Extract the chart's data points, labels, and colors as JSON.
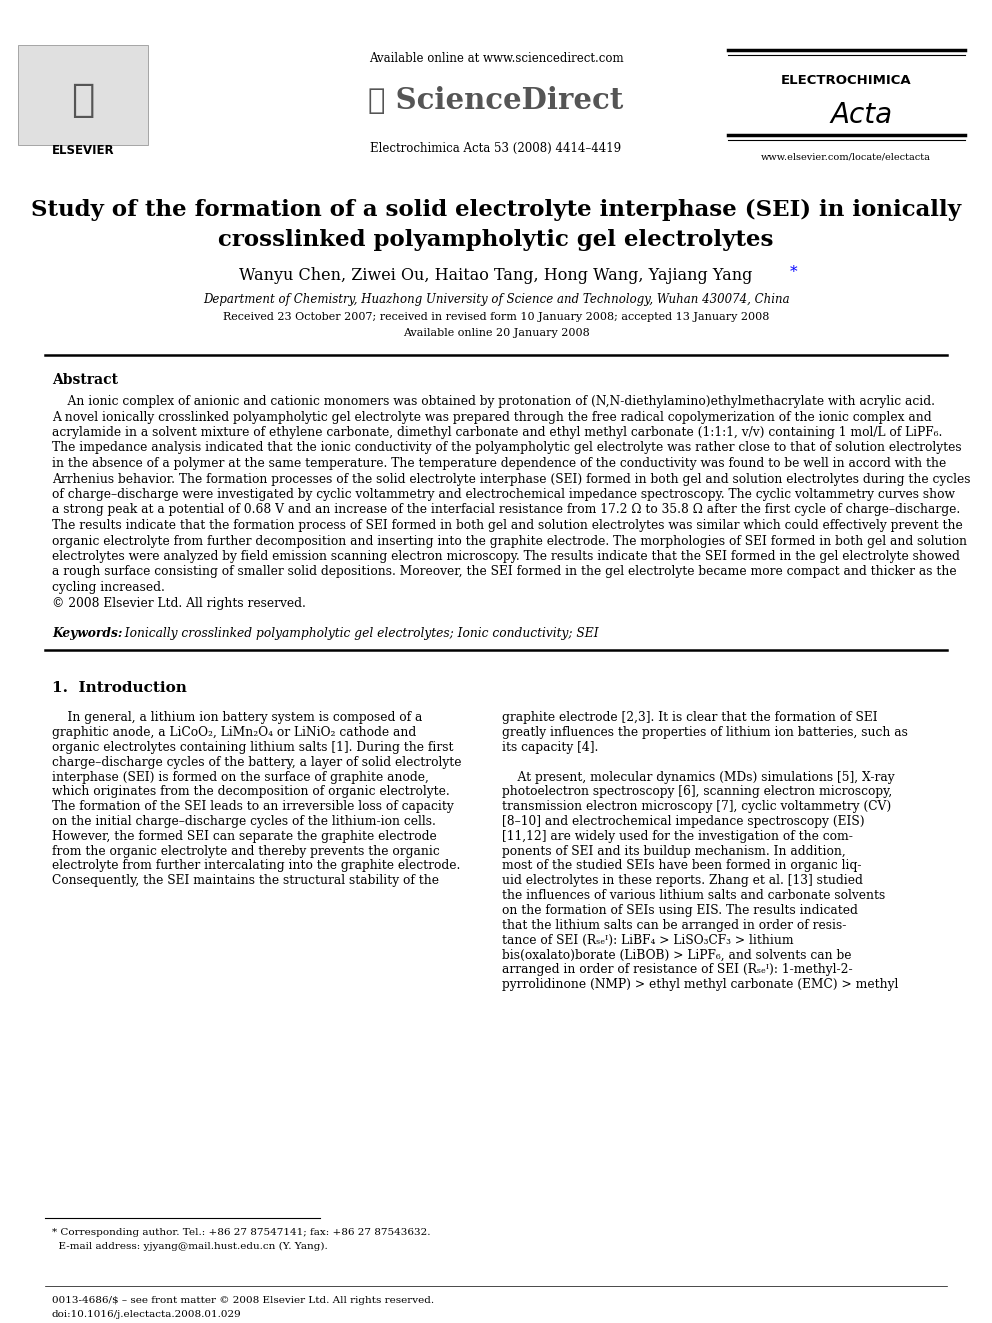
{
  "bg_color": "#ffffff",
  "title_line1": "Study of the formation of a solid electrolyte interphase (SEI) in ionically",
  "title_line2": "crosslinked polyampholytic gel electrolytes",
  "authors_main": "Wanyu Chen, Ziwei Ou, Haitao Tang, Hong Wang, Yajiang Yang",
  "affiliation": "Department of Chemistry, Huazhong University of Science and Technology, Wuhan 430074, China",
  "received": "Received 23 October 2007; received in revised form 10 January 2008; accepted 13 January 2008",
  "available": "Available online 20 January 2008",
  "abstract_title": "Abstract",
  "abstract_indent": "    An ionic complex of anionic and cationic monomers was obtained by protonation of (N,N-diethylamino)ethylmethacrylate with acrylic acid.",
  "abstract_lines": [
    "A novel ionically crosslinked polyampholytic gel electrolyte was prepared through the free radical copolymerization of the ionic complex and",
    "acrylamide in a solvent mixture of ethylene carbonate, dimethyl carbonate and ethyl methyl carbonate (1:1:1, v/v) containing 1 mol/L of LiPF₆.",
    "The impedance analysis indicated that the ionic conductivity of the polyampholytic gel electrolyte was rather close to that of solution electrolytes",
    "in the absence of a polymer at the same temperature. The temperature dependence of the conductivity was found to be well in accord with the",
    "Arrhenius behavior. The formation processes of the solid electrolyte interphase (SEI) formed in both gel and solution electrolytes during the cycles",
    "of charge–discharge were investigated by cyclic voltammetry and electrochemical impedance spectroscopy. The cyclic voltammetry curves show",
    "a strong peak at a potential of 0.68 V and an increase of the interfacial resistance from 17.2 Ω to 35.8 Ω after the first cycle of charge–discharge.",
    "The results indicate that the formation process of SEI formed in both gel and solution electrolytes was similar which could effectively prevent the",
    "organic electrolyte from further decomposition and inserting into the graphite electrode. The morphologies of SEI formed in both gel and solution",
    "electrolytes were analyzed by field emission scanning electron microscopy. The results indicate that the SEI formed in the gel electrolyte showed",
    "a rough surface consisting of smaller solid depositions. Moreover, the SEI formed in the gel electrolyte became more compact and thicker as the",
    "cycling increased.",
    "© 2008 Elsevier Ltd. All rights reserved."
  ],
  "keywords_italic": "Keywords:",
  "keywords_rest": "  Ionically crosslinked polyampholytic gel electrolytes; Ionic conductivity; SEI",
  "section1": "1.  Introduction",
  "intro_left_lines": [
    "    In general, a lithium ion battery system is composed of a",
    "graphitic anode, a LiCoO₂, LiMn₂O₄ or LiNiO₂ cathode and",
    "organic electrolytes containing lithium salts [1]. During the first",
    "charge–discharge cycles of the battery, a layer of solid electrolyte",
    "interphase (SEI) is formed on the surface of graphite anode,",
    "which originates from the decomposition of organic electrolyte.",
    "The formation of the SEI leads to an irreversible loss of capacity",
    "on the initial charge–discharge cycles of the lithium-ion cells.",
    "However, the formed SEI can separate the graphite electrode",
    "from the organic electrolyte and thereby prevents the organic",
    "electrolyte from further intercalating into the graphite electrode.",
    "Consequently, the SEI maintains the structural stability of the"
  ],
  "intro_right_lines": [
    "graphite electrode [2,3]. It is clear that the formation of SEI",
    "greatly influences the properties of lithium ion batteries, such as",
    "its capacity [4].",
    "",
    "    At present, molecular dynamics (MDs) simulations [5], X-ray",
    "photoelectron spectroscopy [6], scanning electron microscopy,",
    "transmission electron microscopy [7], cyclic voltammetry (CV)",
    "[8–10] and electrochemical impedance spectroscopy (EIS)",
    "[11,12] are widely used for the investigation of the com-",
    "ponents of SEI and its buildup mechanism. In addition,",
    "most of the studied SEIs have been formed in organic liq-",
    "uid electrolytes in these reports. Zhang et al. [13] studied",
    "the influences of various lithium salts and carbonate solvents",
    "on the formation of SEIs using EIS. The results indicated",
    "that the lithium salts can be arranged in order of resis-",
    "tance of SEI (Rₛₑᴵ): LiBF₄ > LiSO₃CF₃ > lithium",
    "bis(oxalato)borate (LiBOB) > LiPF₆, and solvents can be",
    "arranged in order of resistance of SEI (Rₛₑᴵ): 1-methyl-2-",
    "pyrrolidinone (NMP) > ethyl methyl carbonate (EMC) > methyl"
  ],
  "footer_line1": "* Corresponding author. Tel.: +86 27 87547141; fax: +86 27 87543632.",
  "footer_line2": "  E-mail address: yjyang@mail.hust.edu.cn (Y. Yang).",
  "footer_bottom1": "0013-4686/$ – see front matter © 2008 Elsevier Ltd. All rights reserved.",
  "footer_bottom2": "doi:10.1016/j.electacta.2008.01.029"
}
